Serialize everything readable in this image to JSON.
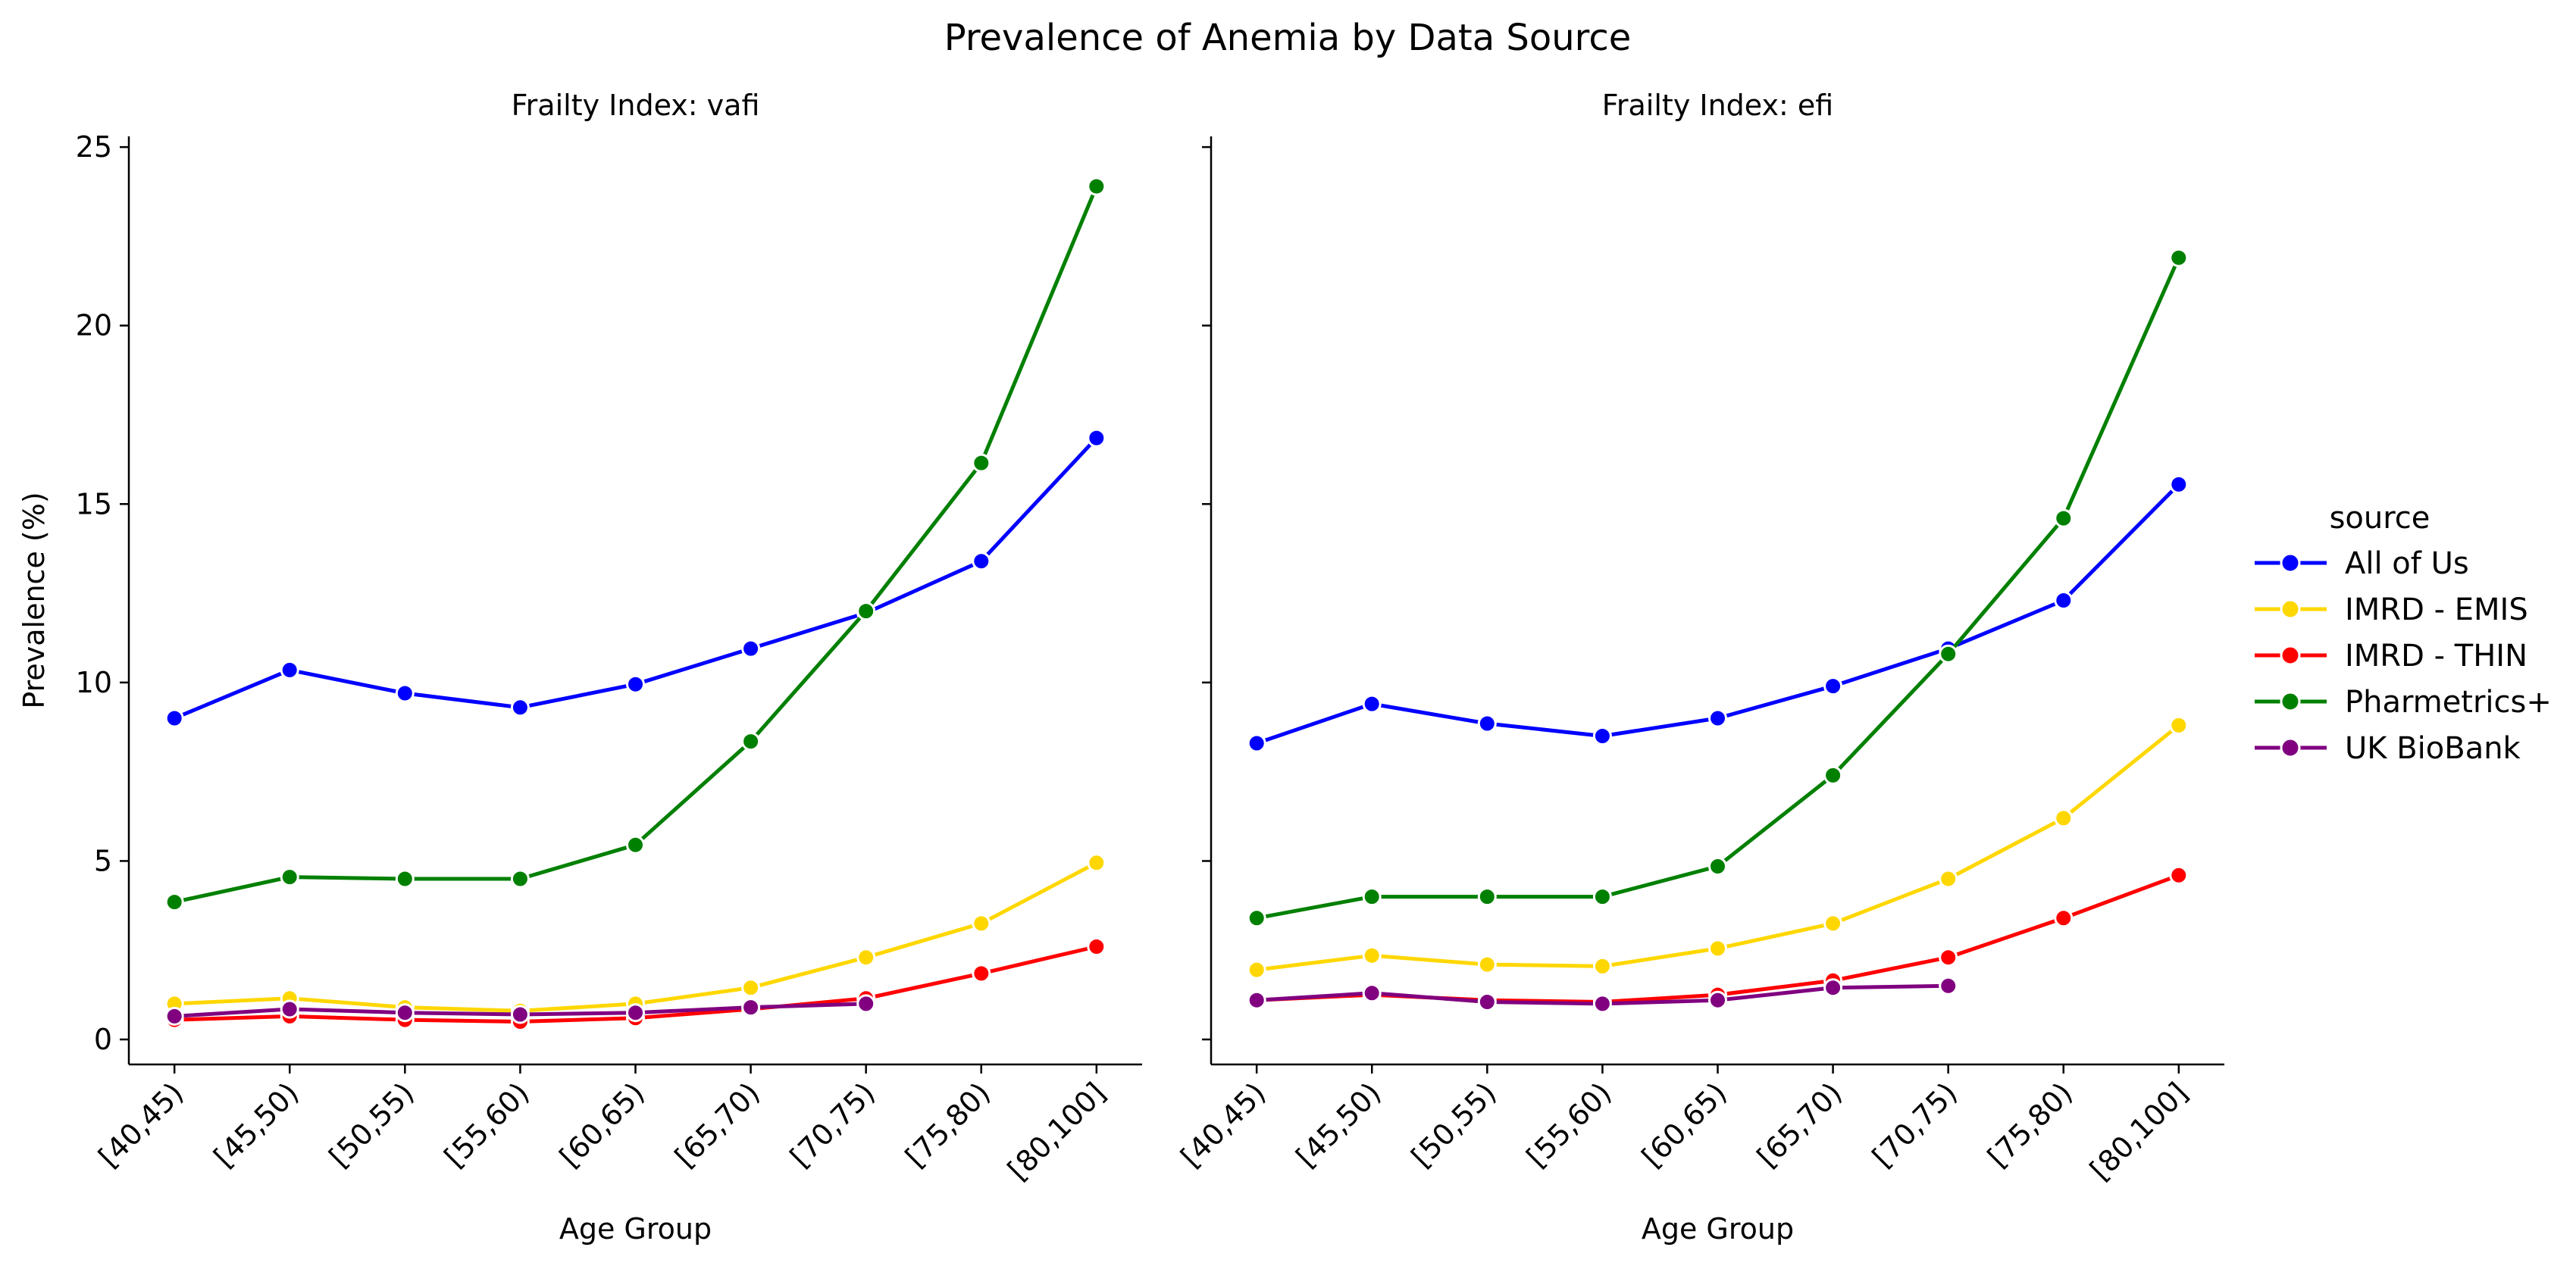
{
  "chart_data": {
    "type": "line",
    "title": "Prevalence of Anemia by Data Source",
    "ylabel": "Prevalence (%)",
    "xlabel": "Age Group",
    "categories": [
      "[40,45)",
      "[45,50)",
      "[50,55)",
      "[55,60)",
      "[60,65)",
      "[65,70)",
      "[70,75)",
      "[75,80)",
      "[80,100]"
    ],
    "ylim": [
      -0.7,
      25.3
    ],
    "yticks": [
      0,
      5,
      10,
      15,
      20,
      25
    ],
    "legend": {
      "title": "source",
      "placement": "right",
      "entries": [
        "All of Us",
        "IMRD - EMIS",
        "IMRD - THIN",
        "Pharmetrics+",
        "UK BioBank"
      ]
    },
    "colors": {
      "All of Us": "#0000ff",
      "IMRD - EMIS": "#ffd700",
      "IMRD - THIN": "#ff0000",
      "Pharmetrics+": "#008000",
      "UK BioBank": "#800080"
    },
    "panels": [
      {
        "title": "Frailty Index: vafi",
        "series": [
          {
            "name": "All of Us",
            "values": [
              9.0,
              10.35,
              9.7,
              9.3,
              9.95,
              10.95,
              11.95,
              13.4,
              16.85
            ]
          },
          {
            "name": "IMRD - EMIS",
            "values": [
              1.0,
              1.15,
              0.9,
              0.8,
              1.0,
              1.45,
              2.3,
              3.25,
              4.95
            ]
          },
          {
            "name": "IMRD - THIN",
            "values": [
              0.55,
              0.65,
              0.55,
              0.5,
              0.6,
              0.85,
              1.15,
              1.85,
              2.6
            ]
          },
          {
            "name": "Pharmetrics+",
            "values": [
              3.85,
              4.55,
              4.5,
              4.5,
              5.45,
              8.35,
              12.0,
              16.15,
              23.9
            ]
          },
          {
            "name": "UK BioBank",
            "values": [
              0.65,
              0.85,
              0.75,
              0.7,
              0.75,
              0.9,
              1.0,
              null,
              null
            ]
          }
        ]
      },
      {
        "title": "Frailty Index: efi",
        "series": [
          {
            "name": "All of Us",
            "values": [
              8.3,
              9.4,
              8.85,
              8.5,
              9.0,
              9.9,
              10.95,
              12.3,
              15.55
            ]
          },
          {
            "name": "IMRD - EMIS",
            "values": [
              1.95,
              2.35,
              2.1,
              2.05,
              2.55,
              3.25,
              4.5,
              6.2,
              8.8
            ]
          },
          {
            "name": "IMRD - THIN",
            "values": [
              1.1,
              1.25,
              1.1,
              1.05,
              1.25,
              1.65,
              2.3,
              3.4,
              4.6
            ]
          },
          {
            "name": "Pharmetrics+",
            "values": [
              3.4,
              4.0,
              4.0,
              4.0,
              4.85,
              7.4,
              10.8,
              14.6,
              21.9
            ]
          },
          {
            "name": "UK BioBank",
            "values": [
              1.1,
              1.3,
              1.05,
              1.0,
              1.1,
              1.45,
              1.5,
              null,
              null
            ]
          }
        ]
      }
    ]
  }
}
